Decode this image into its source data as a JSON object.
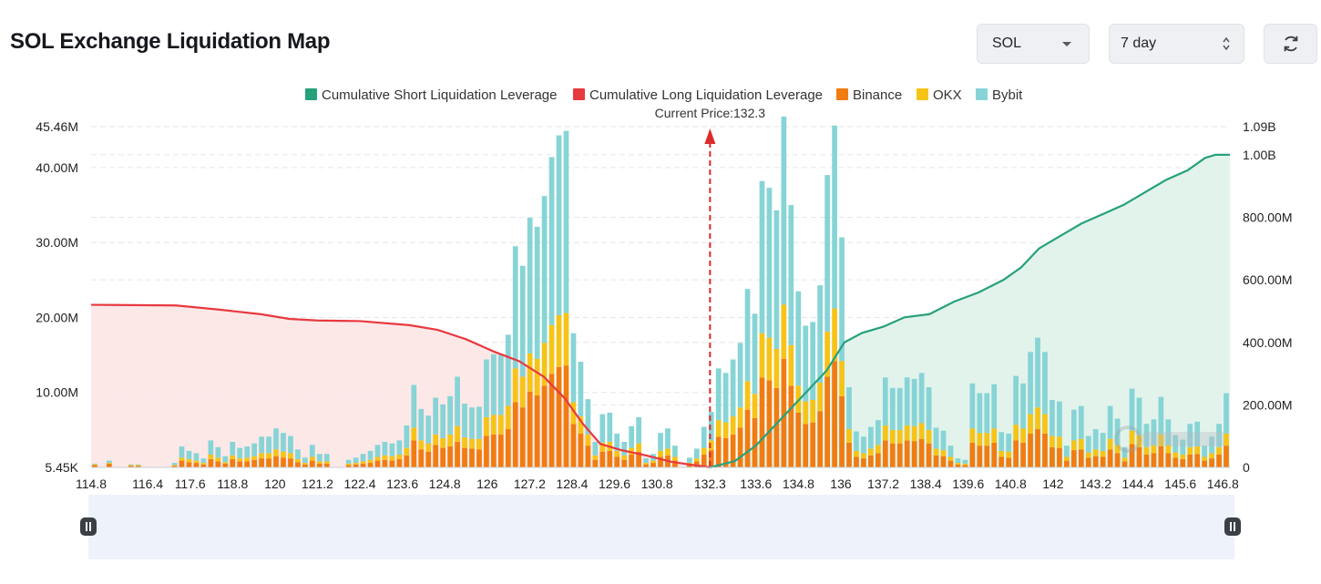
{
  "header": {
    "title": "SOL Exchange Liquidation Map",
    "coin_select": "SOL",
    "range_select": "7 day"
  },
  "colors": {
    "short": "#26a17b",
    "long": "#e8393f",
    "binance": "#f07c12",
    "okx": "#f6c417",
    "bybit": "#87d4d6",
    "marker": "#dd2a2a"
  },
  "icons": {
    "coin_caret": "chevron-down-icon",
    "range_stepper": "up-down-arrows-icon",
    "refresh": "refresh-icon",
    "slider_handle": "pause-handle-icon",
    "watermark": "coinglass-logo-icon"
  },
  "chart_data": {
    "type": "bar",
    "legend": [
      "Cumulative Short Liquidation Leverage",
      "Cumulative Long Liquidation Leverage",
      "Binance",
      "OKX",
      "Bybit"
    ],
    "legend_position": "top-center",
    "annotation": "Current Price:132.3",
    "current_price": 132.3,
    "x_tick_labels": [
      "114.8",
      "116.4",
      "117.6",
      "118.8",
      "120",
      "121.2",
      "122.4",
      "123.6",
      "124.8",
      "126",
      "127.2",
      "128.4",
      "129.6",
      "130.8",
      "132.3",
      "133.6",
      "134.8",
      "136",
      "137.2",
      "138.4",
      "139.6",
      "140.8",
      "142",
      "143.2",
      "144.4",
      "145.6",
      "146.8"
    ],
    "xlim": [
      114.8,
      147.0
    ],
    "left_axis": {
      "tick_labels": [
        "45.46M",
        "40.00M",
        "30.00M",
        "20.00M",
        "10.00M",
        "5.45K"
      ],
      "ylim": [
        0,
        45.46
      ],
      "unit": "M"
    },
    "right_axis": {
      "tick_labels": [
        "1.09B",
        "1.00B",
        "800.00M",
        "600.00M",
        "400.00M",
        "200.00M",
        "0"
      ],
      "ylim": [
        0,
        1090
      ],
      "unit": "M"
    },
    "grid": true,
    "bar_series": [
      {
        "name": "Binance",
        "values": [
          0.3,
          0,
          0.5,
          0,
          0,
          0.2,
          0.2,
          0,
          0,
          0,
          0,
          0.2,
          0.9,
          0.7,
          0.6,
          0.4,
          1.1,
          0.8,
          0.5,
          1.1,
          0.8,
          0.8,
          1.0,
          1.2,
          1.2,
          1.5,
          1.3,
          1.2,
          0.7,
          0.4,
          0.9,
          0.5,
          0.5,
          0,
          0,
          0.3,
          0.4,
          0.5,
          0.6,
          0.9,
          1.0,
          0.9,
          1.1,
          1.6,
          3.6,
          2.4,
          2.1,
          3.0,
          2.6,
          2.8,
          3.4,
          2.6,
          2.5,
          2.4,
          4.2,
          4.4,
          4.4,
          5.1,
          8.7,
          8.0,
          10.1,
          9.6,
          10.9,
          12.5,
          13.4,
          13.6,
          5.8,
          4.5,
          2.9,
          1.0,
          2.1,
          2.2,
          1.4,
          1.0,
          1.7,
          2.1,
          0.4,
          0.6,
          1.4,
          1.6,
          0.9,
          0,
          0.4,
          0.8,
          1.7,
          2.3,
          4.1,
          3.9,
          4.4,
          5.3,
          7.7,
          6.6,
          12.0,
          11.6,
          10.6,
          14.5,
          10.9,
          7.3,
          5.8,
          6.0,
          7.5,
          12.1,
          14.2,
          9.5,
          3.3,
          1.4,
          1.2,
          1.6,
          1.9,
          3.6,
          3.2,
          3.2,
          3.6,
          3.5,
          3.8,
          3.2,
          1.6,
          1.5,
          0.9,
          0.4,
          0.3,
          3.3,
          2.9,
          2.9,
          3.3,
          1.4,
          1.3,
          3.6,
          3.3,
          4.5,
          5.1,
          4.5,
          2.7,
          2.6,
          0.9,
          2.3,
          2.4,
          1.3,
          1.5,
          1.4,
          2.4,
          1.9,
          0.8,
          3.1,
          2.7,
          1.7,
          1.9,
          2.8,
          1.9,
          1.3,
          1.1,
          1.7,
          1.8,
          0.9,
          1.2,
          1.7,
          2.9
        ]
      },
      {
        "name": "OKX",
        "values": [
          0.1,
          0,
          0.1,
          0,
          0,
          0.1,
          0.1,
          0,
          0,
          0,
          0,
          0.1,
          0.4,
          0.4,
          0.3,
          0.2,
          0.6,
          0.5,
          0.2,
          0.5,
          0.4,
          0.5,
          0.5,
          0.7,
          0.7,
          0.9,
          0.8,
          0.7,
          0.4,
          0.2,
          0.5,
          0.3,
          0.3,
          0,
          0,
          0.2,
          0.2,
          0.3,
          0.4,
          0.5,
          0.6,
          0.6,
          0.6,
          1.0,
          1.7,
          1.2,
          1.1,
          1.4,
          1.3,
          1.6,
          2.1,
          1.4,
          1.3,
          1.4,
          2.5,
          2.6,
          2.6,
          3.1,
          4.5,
          4.1,
          5.1,
          4.9,
          5.7,
          6.5,
          6.9,
          7.0,
          2.9,
          2.3,
          1.5,
          0.6,
          1.2,
          1.2,
          0.8,
          0.6,
          0.9,
          1.1,
          0.2,
          0.3,
          0.8,
          0.9,
          0.5,
          0,
          0.2,
          0.4,
          0.9,
          1.3,
          2.2,
          2.1,
          2.4,
          2.7,
          3.8,
          3.2,
          5.9,
          5.7,
          5.2,
          7.2,
          5.4,
          3.6,
          3.0,
          3.0,
          3.8,
          6.0,
          7.0,
          4.7,
          1.8,
          0.8,
          0.7,
          0.9,
          1.1,
          2.0,
          1.8,
          1.8,
          2.0,
          2.0,
          2.1,
          1.8,
          0.9,
          0.8,
          0.5,
          0.2,
          0.2,
          1.9,
          1.7,
          1.7,
          1.9,
          0.8,
          0.8,
          2.1,
          1.9,
          2.6,
          2.9,
          2.6,
          1.5,
          1.5,
          0.5,
          1.3,
          1.4,
          0.7,
          0.9,
          0.8,
          1.4,
          1.1,
          0.5,
          1.8,
          1.6,
          1.0,
          1.1,
          1.6,
          1.1,
          0.7,
          0.6,
          1.0,
          1.0,
          0.5,
          0.7,
          1.0,
          1.6
        ]
      },
      {
        "name": "Bybit",
        "values": [
          0.1,
          0,
          0.3,
          0,
          0,
          0.1,
          0.1,
          0,
          0,
          0,
          0,
          0.3,
          1.5,
          1.1,
          1.0,
          0.6,
          1.9,
          1.4,
          0.8,
          1.8,
          1.4,
          1.5,
          1.7,
          2.2,
          2.2,
          2.8,
          2.5,
          2.3,
          1.3,
          0.7,
          1.6,
          1.0,
          1.0,
          0,
          0,
          0.5,
          0.7,
          1.0,
          1.2,
          1.6,
          1.8,
          1.7,
          1.9,
          3.0,
          5.7,
          4.2,
          3.7,
          4.9,
          4.5,
          5.1,
          6.6,
          4.5,
          4.2,
          4.3,
          7.7,
          8.1,
          8.0,
          9.5,
          16.3,
          14.8,
          18.1,
          17.6,
          19.6,
          22.4,
          24.0,
          24.3,
          9.2,
          7.3,
          4.7,
          1.8,
          3.8,
          3.9,
          2.3,
          1.8,
          2.9,
          3.5,
          0.6,
          0.9,
          2.4,
          2.7,
          1.5,
          0,
          0.7,
          1.3,
          2.8,
          3.8,
          6.9,
          6.6,
          7.6,
          8.6,
          12.3,
          10.7,
          20.3,
          20.0,
          18.5,
          25.1,
          18.7,
          12.6,
          10.1,
          10.4,
          13.0,
          20.9,
          24.4,
          16.5,
          5.6,
          2.6,
          2.2,
          2.9,
          3.3,
          6.4,
          5.6,
          5.6,
          6.4,
          6.3,
          6.7,
          5.7,
          2.8,
          2.6,
          1.5,
          0.6,
          0.5,
          6.0,
          5.3,
          5.3,
          5.9,
          2.5,
          2.4,
          6.5,
          6.0,
          8.3,
          9.3,
          8.3,
          4.8,
          4.7,
          1.5,
          4.1,
          4.4,
          2.2,
          2.7,
          2.4,
          4.4,
          3.5,
          1.4,
          5.6,
          5.0,
          3.1,
          3.4,
          5.0,
          3.4,
          2.3,
          2.0,
          3.1,
          3.3,
          1.5,
          2.2,
          3.1,
          5.4
        ]
      }
    ],
    "long_cumulative": {
      "name": "Cumulative Long Liquidation Leverage",
      "x": [
        114.8,
        117.2,
        118.4,
        119.6,
        120.4,
        121.2,
        122.4,
        123.8,
        124.6,
        125.4,
        126.2,
        126.9,
        127.6,
        128.2,
        128.7,
        129.2,
        129.8,
        130.5,
        131.2,
        131.8,
        132.3
      ],
      "values": [
        520,
        518,
        505,
        490,
        475,
        470,
        468,
        455,
        440,
        410,
        370,
        340,
        290,
        220,
        140,
        75,
        55,
        38,
        18,
        8,
        0
      ]
    },
    "short_cumulative": {
      "name": "Cumulative Short Liquidation Leverage",
      "x": [
        132.3,
        133.0,
        133.6,
        134.1,
        134.6,
        135.1,
        135.6,
        136.1,
        136.6,
        137.2,
        137.8,
        138.5,
        139.2,
        139.9,
        140.6,
        141.1,
        141.6,
        142.2,
        142.8,
        143.4,
        144.0,
        144.6,
        145.2,
        145.8,
        146.3,
        146.6,
        147.0
      ],
      "values": [
        0,
        20,
        70,
        130,
        190,
        250,
        310,
        400,
        430,
        450,
        480,
        490,
        530,
        560,
        600,
        640,
        700,
        740,
        780,
        810,
        840,
        880,
        920,
        950,
        990,
        1000,
        1000
      ]
    }
  }
}
